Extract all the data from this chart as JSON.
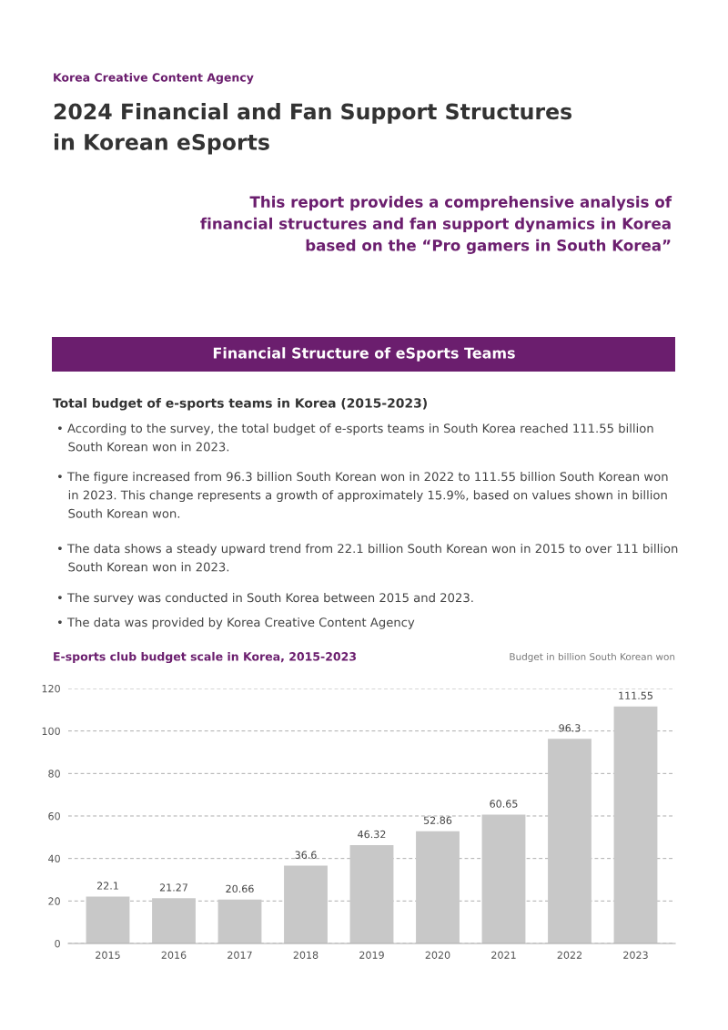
{
  "chart_data": {
    "type": "bar",
    "title": "E-sports club budget scale in Korea, 2015-2023",
    "ylabel": "Budget in billion South Korean won",
    "categories": [
      "2015",
      "2016",
      "2017",
      "2018",
      "2019",
      "2020",
      "2021",
      "2022",
      "2023"
    ],
    "values": [
      22.1,
      21.27,
      20.66,
      36.6,
      46.32,
      52.86,
      60.65,
      96.3,
      111.55
    ],
    "color": "#c8c8c8",
    "ylim": [
      0,
      120
    ],
    "yticks": [
      0,
      20,
      40,
      60,
      80,
      100,
      120
    ],
    "grid": "y",
    "data_labels": true,
    "annotations": [
      "Korea Creative Content Agency",
      "2024 Financial and Fan Support Structures\nin Korean eSports",
      "This report provides a comprehensive analysis of\nfinancial structures and fan support dynamics in Korea\nbased on the “Pro gamers in South Korea”",
      "Financial Structure of eSports Teams",
      "Total budget of e-sports teams in Korea (2015-2023)",
      "• According to the survey, the total budget of e-sports teams in South Korea reached 111.55 billion\n   South Korean won in 2023.",
      "• The figure increased from 96.3 billion South Korean won in 2022 to 111.55 billion South Korean won\n   in 2023. This change represents a growth of approximately 15.9%, based on values shown in billion\n   South Korean won.",
      "• The data shows a steady upward trend from 22.1 billion South Korean won in 2015 to over 111 billion\n   South Korean won in 2023.",
      "• The survey was conducted in South Korea between 2015 and 2023.",
      "• The data was provided by Korea Creative Content Agency"
    ]
  }
}
